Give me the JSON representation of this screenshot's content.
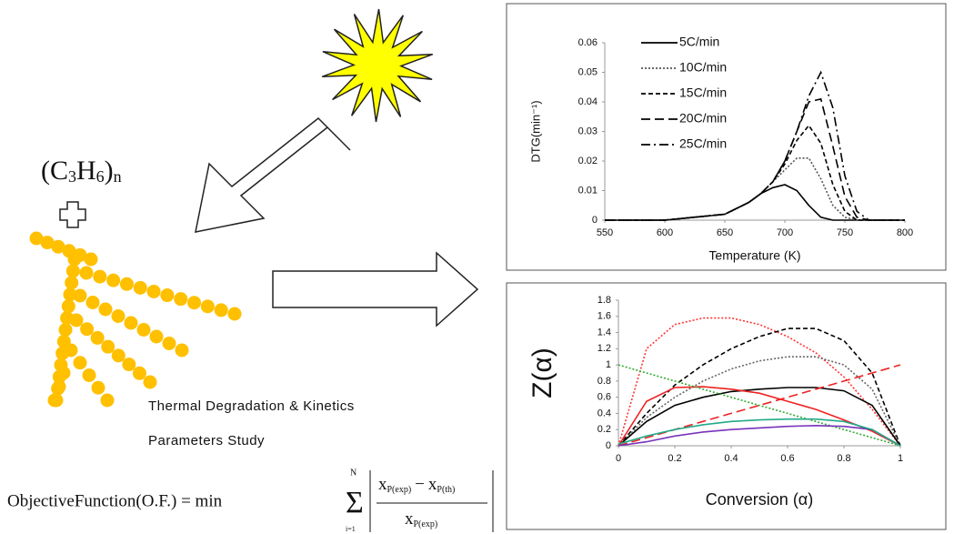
{
  "monomer": {
    "parts": [
      "(C",
      "3",
      "H",
      "6",
      ")",
      "n"
    ]
  },
  "caption": [
    "Thermal  Degradation  &  Kinetics",
    "Parameters Study"
  ],
  "objective": {
    "lhs": "ObjectiveFunction(O.F.) = min",
    "sum_top": "N",
    "sum_bottom": "i=1",
    "numerator": "x",
    "num_sub1": "P(exp)",
    "minus": "−",
    "num_sub2": "P(th)",
    "denominator": "x",
    "den_sub": "P(exp)"
  },
  "chart_data": [
    {
      "type": "line",
      "y_label": "DTG(min⁻¹)",
      "x_label": "Temperature (K)",
      "x": [
        550,
        600,
        650,
        670,
        680,
        690,
        700,
        710,
        720,
        730,
        740,
        750,
        760,
        770,
        780,
        800
      ],
      "xlim": [
        550,
        800
      ],
      "xticks": [
        550,
        600,
        650,
        700,
        750,
        800
      ],
      "ylim": [
        0,
        0.06
      ],
      "yticks": [
        0,
        0.01,
        0.02,
        0.03,
        0.04,
        0.05,
        0.06
      ],
      "series": [
        {
          "name": "5C/min",
          "color": "#000000",
          "style": "solid",
          "values": [
            0,
            0,
            0.002,
            0.006,
            0.009,
            0.011,
            0.012,
            0.01,
            0.005,
            0.001,
            0,
            0,
            0,
            0,
            0,
            0
          ]
        },
        {
          "name": "10C/min",
          "color": "#555555",
          "style": "dotted",
          "values": [
            0,
            0,
            0.002,
            0.006,
            0.009,
            0.013,
            0.017,
            0.021,
            0.021,
            0.014,
            0.005,
            0.001,
            0,
            0,
            0,
            0
          ]
        },
        {
          "name": "15C/min",
          "color": "#000000",
          "style": "dashed",
          "values": [
            0,
            0,
            0.002,
            0.006,
            0.009,
            0.013,
            0.019,
            0.027,
            0.032,
            0.026,
            0.012,
            0.003,
            0,
            0,
            0,
            0
          ]
        },
        {
          "name": "20C/min",
          "color": "#000000",
          "style": "longdash",
          "values": [
            0,
            0,
            0.002,
            0.006,
            0.009,
            0.013,
            0.02,
            0.03,
            0.04,
            0.041,
            0.025,
            0.008,
            0.001,
            0,
            0,
            0
          ]
        },
        {
          "name": "25C/min",
          "color": "#000000",
          "style": "dashdot",
          "values": [
            0,
            0,
            0.002,
            0.006,
            0.009,
            0.013,
            0.02,
            0.03,
            0.042,
            0.05,
            0.038,
            0.015,
            0.003,
            0,
            0,
            0
          ]
        }
      ],
      "legend": "top-left"
    },
    {
      "type": "line",
      "y_label": "Z(α)",
      "x_label": "Conversion (α)",
      "x": [
        0,
        0.1,
        0.2,
        0.3,
        0.4,
        0.5,
        0.6,
        0.7,
        0.8,
        0.9,
        1
      ],
      "xlim": [
        0,
        1
      ],
      "xticks": [
        0,
        0.2,
        0.4,
        0.6,
        0.8,
        1
      ],
      "ylim": [
        0,
        1.8
      ],
      "yticks": [
        0,
        0.2,
        0.4,
        0.6,
        0.8,
        1,
        1.2,
        1.4,
        1.6,
        1.8
      ],
      "series": [
        {
          "color": "#ff3333",
          "style": "dotted",
          "values": [
            0,
            1.2,
            1.5,
            1.58,
            1.58,
            1.5,
            1.35,
            1.15,
            0.85,
            0.45,
            0
          ]
        },
        {
          "color": "#000000",
          "style": "dashed",
          "values": [
            0,
            0.4,
            0.75,
            1.0,
            1.2,
            1.35,
            1.45,
            1.45,
            1.3,
            0.9,
            0
          ]
        },
        {
          "color": "#666666",
          "style": "dotted",
          "values": [
            0,
            0.35,
            0.6,
            0.8,
            0.95,
            1.05,
            1.1,
            1.1,
            1.0,
            0.7,
            0
          ]
        },
        {
          "color": "#000000",
          "style": "solid",
          "values": [
            0,
            0.3,
            0.5,
            0.6,
            0.67,
            0.7,
            0.72,
            0.72,
            0.68,
            0.5,
            0
          ]
        },
        {
          "color": "#ee2222",
          "style": "solid",
          "values": [
            0,
            0.55,
            0.72,
            0.73,
            0.7,
            0.65,
            0.55,
            0.45,
            0.32,
            0.18,
            0
          ]
        },
        {
          "color": "#33aa33",
          "style": "dotted",
          "values": [
            1.0,
            0.9,
            0.8,
            0.7,
            0.6,
            0.5,
            0.4,
            0.3,
            0.2,
            0.1,
            0
          ]
        },
        {
          "color": "#ee2222",
          "style": "longdash",
          "values": [
            0,
            0.1,
            0.2,
            0.3,
            0.4,
            0.5,
            0.6,
            0.7,
            0.8,
            0.9,
            1.0
          ]
        },
        {
          "color": "#7733bb",
          "style": "solid",
          "values": [
            0,
            0.05,
            0.12,
            0.17,
            0.2,
            0.22,
            0.24,
            0.25,
            0.24,
            0.2,
            0
          ]
        },
        {
          "color": "#22aa88",
          "style": "solid",
          "values": [
            0.02,
            0.12,
            0.2,
            0.26,
            0.3,
            0.32,
            0.33,
            0.33,
            0.3,
            0.2,
            0
          ]
        }
      ]
    }
  ]
}
